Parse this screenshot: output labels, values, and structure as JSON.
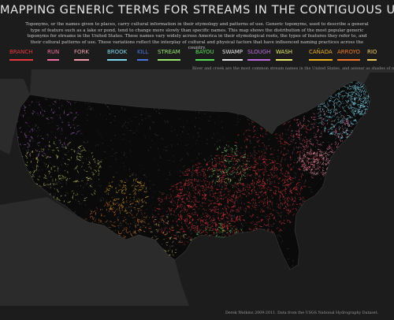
{
  "title": "MAPPING GENERIC TERMS FOR STREAMS IN THE CONTIGUOUS UNITED STATES",
  "intro": "Toponyms, or the names given to places, carry cultural information in their etymology and patterns of use. Generic toponyms, used to describe a general type of feature such as a lake or pond, tend to change more slowly than specific names. This map shows the distribution of the most popular generic toponyms for streams in the United States. These names vary widely across America in their etymological roots, the types of features they refer to, and their cultural patterns of use. These variations reflect the interplay of cultural and physical factors that have influenced naming practices across the country.",
  "legend": [
    {
      "term": "BRANCH",
      "color": "#e8383d"
    },
    {
      "term": "RUN",
      "color": "#f06fa0"
    },
    {
      "term": "FORK",
      "color": "#f29aa8"
    },
    {
      "term": "BROOK",
      "color": "#7fd8f0"
    },
    {
      "term": "KILL",
      "color": "#4a78e0"
    },
    {
      "term": "STREAM",
      "color": "#9be870"
    },
    {
      "term": "BAYOU",
      "color": "#5ce05a"
    },
    {
      "term": "SWAMP",
      "color": "#e6e6e6"
    },
    {
      "term": "SLOUGH",
      "color": "#c06ee0"
    },
    {
      "term": "WASH",
      "color": "#e8e86a"
    },
    {
      "term": "CAÑADA",
      "color": "#f0b020"
    },
    {
      "term": "ARROYO",
      "color": "#f07a2a"
    },
    {
      "term": "RIO",
      "color": "#f0c860"
    }
  ],
  "river_note": "River and creek are the most common stream names in the United States, and appear as shades of gray on this map.",
  "credit": "Derek Watkins 2009-2011. Data from the USGS National Hydrography Dataset."
}
